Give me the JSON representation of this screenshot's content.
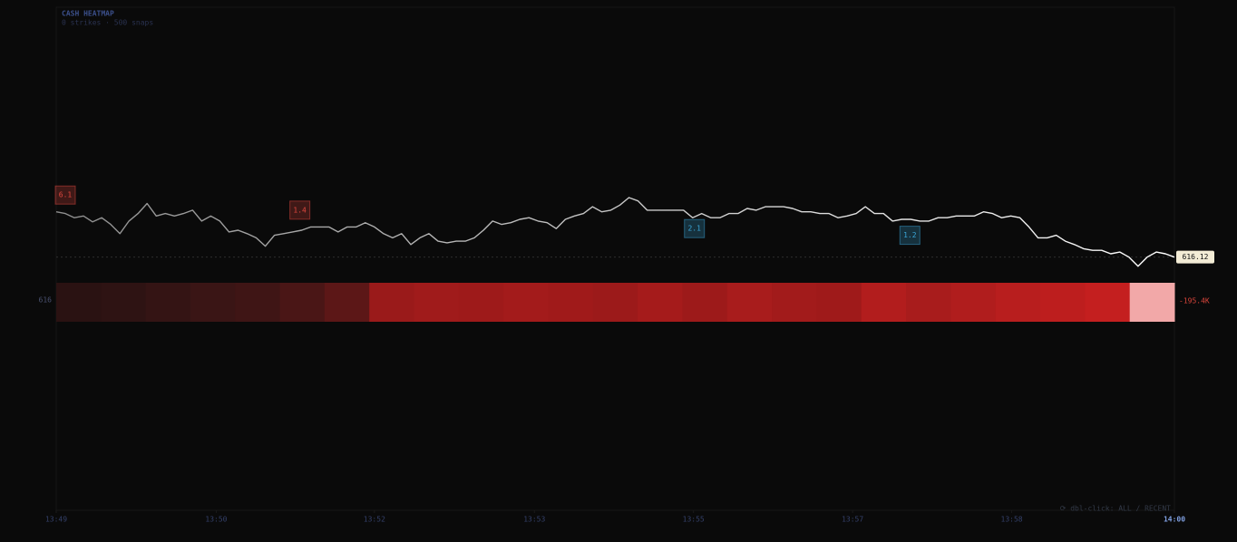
{
  "chart_data": {
    "type": "line",
    "title": "CASH HEATMAP",
    "subtitle": "0 strikes · 500 snaps",
    "values": [
      616.66,
      616.64,
      616.59,
      616.61,
      616.54,
      616.59,
      616.51,
      616.4,
      616.55,
      616.64,
      616.76,
      616.61,
      616.64,
      616.61,
      616.64,
      616.68,
      616.55,
      616.61,
      616.55,
      616.42,
      616.44,
      616.4,
      616.35,
      616.25,
      616.38,
      616.4,
      616.42,
      616.44,
      616.48,
      616.48,
      616.48,
      616.42,
      616.48,
      616.48,
      616.53,
      616.48,
      616.4,
      616.35,
      616.4,
      616.27,
      616.35,
      616.4,
      616.31,
      616.29,
      616.31,
      616.31,
      616.35,
      616.44,
      616.55,
      616.51,
      616.53,
      616.57,
      616.59,
      616.55,
      616.53,
      616.46,
      616.57,
      616.61,
      616.64,
      616.72,
      616.66,
      616.68,
      616.74,
      616.83,
      616.79,
      616.68,
      616.68,
      616.68,
      616.68,
      616.68,
      616.59,
      616.64,
      616.59,
      616.59,
      616.64,
      616.64,
      616.7,
      616.68,
      616.72,
      616.72,
      616.72,
      616.7,
      616.66,
      616.66,
      616.64,
      616.64,
      616.59,
      616.61,
      616.64,
      616.72,
      616.64,
      616.64,
      616.55,
      616.57,
      616.57,
      616.55,
      616.55,
      616.59,
      616.59,
      616.61,
      616.61,
      616.61,
      616.66,
      616.64,
      616.59,
      616.61,
      616.59,
      616.48,
      616.35,
      616.35,
      616.38,
      616.31,
      616.27,
      616.22,
      616.2,
      616.2,
      616.16,
      616.18,
      616.12,
      616.01,
      616.12,
      616.18,
      616.16,
      616.12
    ],
    "color_start": "#8e8e8e",
    "color_end": "#ffffff",
    "xlim": [
      0,
      123
    ],
    "ylim": [
      613.1,
      619.1
    ],
    "xticks": [
      {
        "value": 0,
        "label": "13:49"
      },
      {
        "value": 17.6,
        "label": "13:50"
      },
      {
        "value": 35,
        "label": "13:52"
      },
      {
        "value": 52.6,
        "label": "13:53"
      },
      {
        "value": 70.1,
        "label": "13:55"
      },
      {
        "value": 87.6,
        "label": "13:57"
      },
      {
        "value": 105.1,
        "label": "13:58"
      },
      {
        "value": 123,
        "label": "14:00"
      }
    ],
    "annotations": [
      {
        "x": 1,
        "y": 616.86,
        "value": 6.1,
        "color": "#e0483f"
      },
      {
        "x": 26.8,
        "y": 616.68,
        "value": 1.4,
        "color": "#e0483f"
      },
      {
        "x": 70.2,
        "y": 616.46,
        "value": 2.1,
        "color": "#3aa6d8"
      },
      {
        "x": 93.9,
        "y": 616.38,
        "value": 1.2,
        "color": "#3aa6d8"
      }
    ],
    "heatmap": {
      "row_label": "616",
      "total": -195400,
      "total_label": "-195.4K",
      "colors": [
        "#2a1212",
        "#2e1313",
        "#341414",
        "#3a1515",
        "#3f1515",
        "#4a1616",
        "#5c1717",
        "#9a1a1a",
        "#a01b1b",
        "#9e1a1a",
        "#a31b1b",
        "#a01a1a",
        "#9c1a1a",
        "#a51b1b",
        "#9d1a1a",
        "#a81c1c",
        "#a21b1b",
        "#9f1a1a",
        "#b21d1d",
        "#a81c1c",
        "#b01d1d",
        "#b81e1e",
        "#bd1e1e",
        "#c41f1f",
        "#f2a8a8"
      ]
    },
    "footer": "⟳ dbl-click: ALL / RECENT"
  }
}
